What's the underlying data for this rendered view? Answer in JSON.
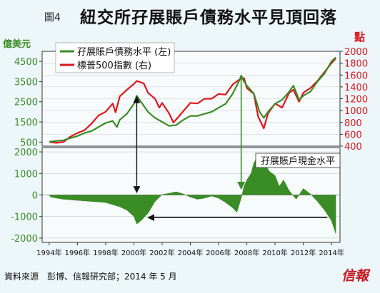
{
  "figure_label": "圖4",
  "title": "紐交所孖展賬戶債務水平見頂回落",
  "footer": "資料來源　彭博、信報研究部；2014 年 5 月",
  "logo": "信報",
  "colors": {
    "margin_debt": "#3a8c25",
    "sp500": "#e0151c",
    "cash_fill": "#3a8c25",
    "left_axis": "#3a8c25",
    "right_axis": "#e0151c",
    "arrows": "#111111",
    "green_marker": "#3a8c25"
  },
  "chart_data": [
    {
      "type": "line",
      "xlim": [
        1993.5,
        2014.6
      ],
      "x_ticks": [
        {
          "x": 1994,
          "label": "1994年"
        },
        {
          "x": 1996,
          "label": "1996年"
        },
        {
          "x": 1998,
          "label": "1998年"
        },
        {
          "x": 2000,
          "label": "2000年"
        },
        {
          "x": 2002,
          "label": "2002年"
        },
        {
          "x": 2004,
          "label": "2004年"
        },
        {
          "x": 2006,
          "label": "2006年"
        },
        {
          "x": 2008,
          "label": "2008年"
        },
        {
          "x": 2010,
          "label": "2010年"
        },
        {
          "x": 2012,
          "label": "2012年"
        },
        {
          "x": 2014,
          "label": "2014年"
        }
      ],
      "left_axis": {
        "label": "億美元",
        "ylim": [
          300,
          5000
        ],
        "ticks": [
          500,
          1500,
          2500,
          3500,
          4500
        ],
        "tick_labels": [
          "500",
          "1500",
          "2500",
          "3500",
          "4500"
        ]
      },
      "right_axis": {
        "label": "點",
        "ylim": [
          400,
          2000
        ],
        "ticks": [
          400,
          600,
          800,
          1000,
          1200,
          1400,
          1600,
          1800,
          2000
        ],
        "tick_labels": [
          "400",
          "600",
          "800",
          "1000",
          "1200",
          "1400",
          "1600",
          "1800",
          "2000"
        ]
      },
      "legend_position": "top-left",
      "series": [
        {
          "name": "孖展賬戶債務水平 (左)",
          "axis": "left",
          "points": [
            [
              1994.0,
              520
            ],
            [
              1994.5,
              560
            ],
            [
              1995.0,
              590
            ],
            [
              1995.5,
              700
            ],
            [
              1996.0,
              800
            ],
            [
              1996.5,
              950
            ],
            [
              1997.0,
              1050
            ],
            [
              1997.5,
              1250
            ],
            [
              1998.0,
              1450
            ],
            [
              1998.5,
              1550
            ],
            [
              1998.8,
              1250
            ],
            [
              1999.0,
              1600
            ],
            [
              1999.5,
              1900
            ],
            [
              2000.0,
              2400
            ],
            [
              2000.2,
              2800
            ],
            [
              2000.5,
              2500
            ],
            [
              2001.0,
              2000
            ],
            [
              2001.5,
              1700
            ],
            [
              2002.0,
              1500
            ],
            [
              2002.5,
              1300
            ],
            [
              2003.0,
              1350
            ],
            [
              2003.5,
              1600
            ],
            [
              2004.0,
              1800
            ],
            [
              2004.5,
              1800
            ],
            [
              2005.0,
              1900
            ],
            [
              2005.5,
              2000
            ],
            [
              2006.0,
              2200
            ],
            [
              2006.5,
              2400
            ],
            [
              2007.0,
              2900
            ],
            [
              2007.5,
              3600
            ],
            [
              2007.6,
              3800
            ],
            [
              2007.8,
              3500
            ],
            [
              2008.0,
              3300
            ],
            [
              2008.5,
              2900
            ],
            [
              2008.9,
              2000
            ],
            [
              2009.2,
              1700
            ],
            [
              2009.5,
              2000
            ],
            [
              2010.0,
              2400
            ],
            [
              2010.5,
              2600
            ],
            [
              2011.0,
              3000
            ],
            [
              2011.3,
              3300
            ],
            [
              2011.7,
              2600
            ],
            [
              2012.0,
              2800
            ],
            [
              2012.5,
              3000
            ],
            [
              2013.0,
              3500
            ],
            [
              2013.5,
              3900
            ],
            [
              2014.0,
              4500
            ],
            [
              2014.3,
              4700
            ]
          ]
        },
        {
          "name": "標普500指數 (右)",
          "axis": "right",
          "points": [
            [
              1994.0,
              470
            ],
            [
              1994.5,
              455
            ],
            [
              1995.0,
              470
            ],
            [
              1995.5,
              560
            ],
            [
              1996.0,
              620
            ],
            [
              1996.5,
              670
            ],
            [
              1997.0,
              780
            ],
            [
              1997.5,
              920
            ],
            [
              1998.0,
              980
            ],
            [
              1998.5,
              1120
            ],
            [
              1998.7,
              970
            ],
            [
              1999.0,
              1240
            ],
            [
              1999.5,
              1350
            ],
            [
              2000.0,
              1450
            ],
            [
              2000.2,
              1500
            ],
            [
              2000.7,
              1460
            ],
            [
              2001.0,
              1300
            ],
            [
              2001.5,
              1200
            ],
            [
              2001.8,
              1050
            ],
            [
              2002.0,
              1130
            ],
            [
              2002.5,
              950
            ],
            [
              2002.8,
              800
            ],
            [
              2003.0,
              850
            ],
            [
              2003.5,
              990
            ],
            [
              2004.0,
              1130
            ],
            [
              2004.5,
              1120
            ],
            [
              2005.0,
              1200
            ],
            [
              2005.5,
              1200
            ],
            [
              2006.0,
              1280
            ],
            [
              2006.5,
              1270
            ],
            [
              2007.0,
              1440
            ],
            [
              2007.5,
              1530
            ],
            [
              2007.8,
              1550
            ],
            [
              2008.0,
              1380
            ],
            [
              2008.5,
              1280
            ],
            [
              2008.8,
              900
            ],
            [
              2009.2,
              700
            ],
            [
              2009.5,
              950
            ],
            [
              2010.0,
              1120
            ],
            [
              2010.5,
              1050
            ],
            [
              2011.0,
              1300
            ],
            [
              2011.3,
              1350
            ],
            [
              2011.7,
              1150
            ],
            [
              2012.0,
              1300
            ],
            [
              2012.5,
              1380
            ],
            [
              2013.0,
              1500
            ],
            [
              2013.5,
              1650
            ],
            [
              2014.0,
              1800
            ],
            [
              2014.3,
              1880
            ]
          ]
        }
      ],
      "annotations": [
        {
          "type": "double-arrow",
          "x": 2000.2,
          "from": 2750,
          "to": 400,
          "color": "black"
        },
        {
          "type": "arrow-down",
          "x": 2007.6,
          "from": 3700,
          "to": 400,
          "color": "green"
        }
      ]
    },
    {
      "type": "area",
      "title": "孖展賬戶現金水平",
      "xlim": [
        1993.5,
        2014.6
      ],
      "ylabel": "",
      "ylim": [
        -2200,
        2200
      ],
      "y_ticks": [
        -2000,
        -1000,
        0,
        1000,
        2000
      ],
      "y_tick_labels": [
        "-2000",
        "-1000",
        "0",
        "1000",
        "2000"
      ],
      "series": [
        {
          "points": [
            [
              1994.0,
              0
            ],
            [
              1994.1,
              -100
            ],
            [
              1995.0,
              -200
            ],
            [
              1996.0,
              -250
            ],
            [
              1997.0,
              -300
            ],
            [
              1998.0,
              -350
            ],
            [
              1999.0,
              -550
            ],
            [
              1999.5,
              -700
            ],
            [
              2000.0,
              -1000
            ],
            [
              2000.2,
              -1350
            ],
            [
              2000.5,
              -1200
            ],
            [
              2001.0,
              -850
            ],
            [
              2001.5,
              -300
            ],
            [
              2002.0,
              20
            ],
            [
              2002.5,
              80
            ],
            [
              2003.0,
              150
            ],
            [
              2003.5,
              50
            ],
            [
              2004.0,
              -100
            ],
            [
              2004.5,
              -200
            ],
            [
              2005.0,
              -150
            ],
            [
              2005.5,
              -50
            ],
            [
              2006.0,
              -150
            ],
            [
              2006.5,
              -350
            ],
            [
              2007.0,
              -600
            ],
            [
              2007.3,
              -800
            ],
            [
              2007.6,
              -150
            ],
            [
              2007.8,
              400
            ],
            [
              2008.0,
              700
            ],
            [
              2008.3,
              1000
            ],
            [
              2008.5,
              1500
            ],
            [
              2008.8,
              1800
            ],
            [
              2009.0,
              1300
            ],
            [
              2009.3,
              1400
            ],
            [
              2009.6,
              1100
            ],
            [
              2010.0,
              900
            ],
            [
              2010.3,
              400
            ],
            [
              2010.6,
              700
            ],
            [
              2011.0,
              200
            ],
            [
              2011.5,
              -200
            ],
            [
              2012.0,
              300
            ],
            [
              2012.5,
              50
            ],
            [
              2013.0,
              -300
            ],
            [
              2013.5,
              -700
            ],
            [
              2014.0,
              -1200
            ],
            [
              2014.3,
              -1800
            ]
          ]
        }
      ],
      "annotations": [
        {
          "type": "arrow-left",
          "from_x": 2013.7,
          "to_x": 2001.0,
          "y": -1050,
          "color": "black"
        }
      ]
    }
  ]
}
